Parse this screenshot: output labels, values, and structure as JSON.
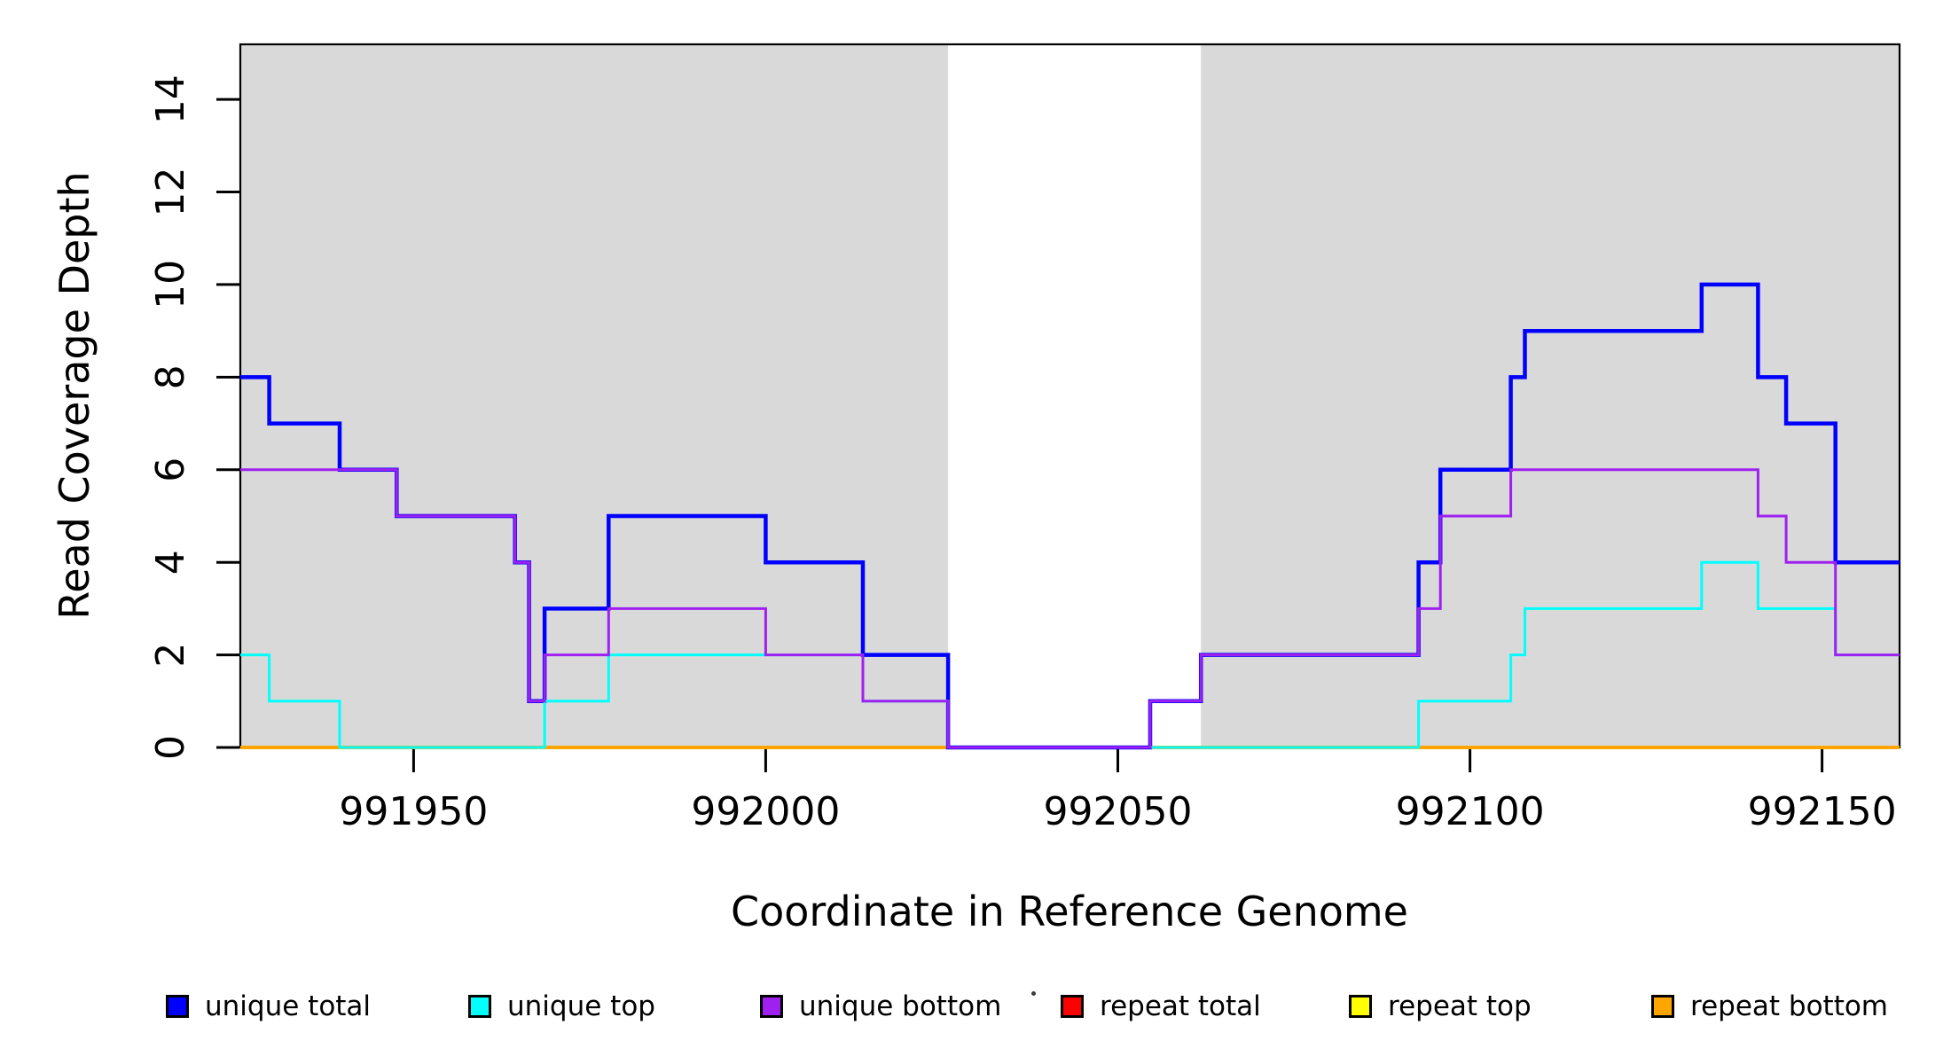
{
  "chart_data": {
    "type": "step-line",
    "title": "",
    "xlabel": "Coordinate in Reference Genome",
    "ylabel": "Read Coverage Depth",
    "x_domain": [
      991925.4,
      992161.0
    ],
    "y_domain": [
      0,
      15.19
    ],
    "x_ticks": [
      991950,
      992000,
      992050,
      992100,
      992150
    ],
    "y_ticks": [
      0,
      2,
      4,
      6,
      8,
      10,
      12,
      14
    ],
    "grid": "off",
    "shade_color": "#D9D9D9",
    "shaded_regions": [
      [
        991925.4,
        992025.9
      ],
      [
        992061.8,
        992161.0
      ]
    ],
    "shaded_regions_meaning": "uniquely mappable regions (white gap = repeat region ~992026-992062)",
    "series": [
      {
        "name": "repeat total",
        "color": "#FF0000",
        "width": 4,
        "start": 0,
        "steps": []
      },
      {
        "name": "repeat top",
        "color": "#FFFF00",
        "width": 4,
        "start": 0,
        "steps": []
      },
      {
        "name": "repeat bottom",
        "color": "#FFA500",
        "width": 4,
        "start": 0,
        "steps": []
      },
      {
        "name": "unique total",
        "color": "#0000FF",
        "width": 4.5,
        "start": 8,
        "steps": [
          [
            991929.5,
            7
          ],
          [
            991939.5,
            6
          ],
          [
            991947.6,
            5
          ],
          [
            991964.4,
            4
          ],
          [
            991966.4,
            1
          ],
          [
            991968.6,
            3
          ],
          [
            991977.7,
            5
          ],
          [
            992000.0,
            4
          ],
          [
            992013.8,
            2
          ],
          [
            992025.9,
            0
          ],
          [
            992054.6,
            1
          ],
          [
            992061.8,
            2
          ],
          [
            992092.7,
            4
          ],
          [
            992095.8,
            6
          ],
          [
            992105.8,
            8
          ],
          [
            992107.8,
            9
          ],
          [
            992132.9,
            10
          ],
          [
            992140.9,
            8
          ],
          [
            992144.9,
            7
          ],
          [
            992151.9,
            4
          ]
        ]
      },
      {
        "name": "unique top",
        "color": "#00FFFF",
        "width": 3,
        "start": 2,
        "steps": [
          [
            991929.5,
            1
          ],
          [
            991939.5,
            0
          ],
          [
            991968.6,
            1
          ],
          [
            991977.7,
            2
          ],
          [
            992013.8,
            1
          ],
          [
            992025.9,
            0
          ],
          [
            992092.7,
            1
          ],
          [
            992105.8,
            2
          ],
          [
            992107.8,
            3
          ],
          [
            992132.9,
            4
          ],
          [
            992140.9,
            3
          ],
          [
            992151.9,
            2
          ]
        ]
      },
      {
        "name": "unique bottom",
        "color": "#A020F0",
        "width": 3,
        "start": 6,
        "steps": [
          [
            991947.6,
            5
          ],
          [
            991964.4,
            4
          ],
          [
            991966.4,
            1
          ],
          [
            991968.6,
            2
          ],
          [
            991977.7,
            3
          ],
          [
            992000.0,
            2
          ],
          [
            992013.8,
            1
          ],
          [
            992025.9,
            0
          ],
          [
            992054.6,
            1
          ],
          [
            992061.8,
            2
          ],
          [
            992092.7,
            3
          ],
          [
            992095.8,
            5
          ],
          [
            992105.8,
            6
          ],
          [
            992140.9,
            5
          ],
          [
            992144.9,
            4
          ],
          [
            992151.9,
            2
          ]
        ]
      }
    ],
    "legend": [
      {
        "label": "unique total",
        "color": "#0000FF"
      },
      {
        "label": "unique top",
        "color": "#00FFFF"
      },
      {
        "label": "unique bottom",
        "color": "#A020F0"
      },
      {
        "label": "repeat total",
        "color": "#FF0000"
      },
      {
        "label": "repeat top",
        "color": "#FFFF00"
      },
      {
        "label": "repeat bottom",
        "color": "#FFA500"
      }
    ],
    "legend_position": "bottom",
    "stray_mark": {
      "note": "tiny dot left of repeat-total swatch"
    }
  }
}
